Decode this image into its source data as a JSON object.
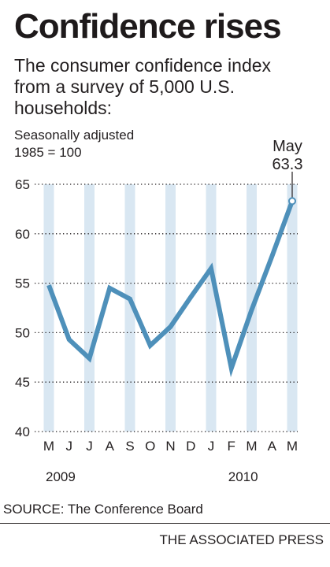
{
  "headline": "Confidence rises",
  "subtitle_lines": [
    "The consumer confidence index",
    "from a survey of 5,000 U.S.",
    "households:"
  ],
  "unit_note_lines": [
    "Seasonally adjusted",
    "1985 = 100"
  ],
  "source": "SOURCE: The Conference Board",
  "credit": "THE ASSOCIATED PRESS",
  "colors": {
    "line": "#4e90ba",
    "band": "#d9e7f2",
    "grid": "#231f20",
    "text": "#231f20"
  },
  "chart_data": {
    "type": "line",
    "categories": [
      "M",
      "J",
      "J",
      "A",
      "S",
      "O",
      "N",
      "D",
      "J",
      "F",
      "M",
      "A",
      "M"
    ],
    "year_labels": [
      {
        "label": "2009",
        "at_index": 0
      },
      {
        "label": "2010",
        "at_index": 9
      }
    ],
    "series": [
      {
        "values": [
          54.8,
          49.3,
          47.4,
          54.5,
          53.4,
          48.7,
          50.6,
          53.6,
          56.5,
          46.4,
          52.3,
          57.7,
          63.3
        ]
      }
    ],
    "ylim": [
      40,
      65
    ],
    "yticks": [
      40,
      45,
      50,
      55,
      60,
      65
    ],
    "grid": true,
    "annotation": {
      "label": "May",
      "value": "63.3",
      "at_index": 12
    },
    "title": "Confidence rises",
    "xlabel": "",
    "ylabel": "Seasonally adjusted, 1985 = 100"
  }
}
